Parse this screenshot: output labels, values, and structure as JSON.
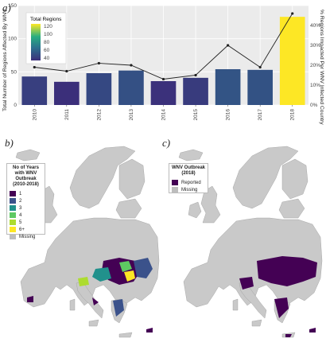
{
  "panel_a": {
    "letter": "a)",
    "legend_title": "Total Regions",
    "legend_ticks": [
      "120",
      "100",
      "80",
      "60",
      "40"
    ],
    "ylabel_left": "Total Number of Regions Affected By WNV",
    "ylabel_right": "% Regions Impacted Per WNV Infected Country",
    "colors": {
      "low": "#3b2f7a",
      "mid": "#21918c",
      "high": "#fde725",
      "line": "#222222",
      "panel_bg": "#ebebeb"
    }
  },
  "chart_data": {
    "type": "bar",
    "categories": [
      "2010",
      "2011",
      "2012",
      "2013",
      "2014",
      "2015",
      "2016",
      "2017",
      "2018"
    ],
    "series": [
      {
        "values": [
          43,
          35,
          48,
          52,
          36,
          41,
          54,
          53,
          133
        ]
      },
      {
        "values": [
          19,
          17,
          21,
          20,
          13,
          15,
          30,
          19,
          46
        ]
      }
    ],
    "ylim_left": [
      0,
      150
    ],
    "left_ticks": [
      0,
      50,
      100,
      150
    ],
    "ylim_right": [
      0,
      50
    ],
    "right_ticks": [
      "0%",
      "10%",
      "20%",
      "30%",
      "40%"
    ],
    "legend_placement": "top-left",
    "grid": true
  },
  "panel_b": {
    "letter": "b)",
    "legend_title_line1": "No of Years",
    "legend_title_line2": "with WNV Outbreak",
    "legend_title_line3": "(2010-2018)",
    "items": [
      {
        "label": "1",
        "color": "#440154"
      },
      {
        "label": "2",
        "color": "#3b528b"
      },
      {
        "label": "3",
        "color": "#21918c"
      },
      {
        "label": "4",
        "color": "#5ec962"
      },
      {
        "label": "5",
        "color": "#addc30"
      },
      {
        "label": "6+",
        "color": "#fde725"
      },
      {
        "label": "Missing",
        "color": "#bdbdbd"
      }
    ]
  },
  "panel_c": {
    "letter": "c)",
    "legend_title_line1": "WNV Outbreak",
    "legend_title_line2": "(2018)",
    "items": [
      {
        "label": "Reported",
        "color": "#440154"
      },
      {
        "label": "Missing",
        "color": "#bdbdbd"
      }
    ]
  }
}
